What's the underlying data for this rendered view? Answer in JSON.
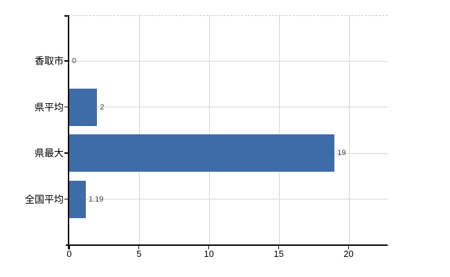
{
  "chart_data": {
    "type": "bar",
    "orientation": "horizontal",
    "title": "",
    "xlabel": "",
    "ylabel": "",
    "categories": [
      "香取市",
      "県平均",
      "県最大",
      "全国平均"
    ],
    "values": [
      0,
      2,
      19,
      1.19
    ],
    "value_labels": [
      "0",
      "2",
      "19",
      "1.19"
    ],
    "xlim": [
      0,
      22.8
    ],
    "xticks": [
      0,
      5,
      10,
      15,
      20
    ],
    "xtick_labels": [
      "0",
      "5",
      "10",
      "15",
      "20"
    ],
    "grid": true,
    "legend": "none",
    "colors": {
      "bar": "#3d6ca9",
      "vertical_gridline": "#d3d3d3",
      "horizontal_gridline": "#d3d8d0",
      "top_border_dashed": "#c4c9c4",
      "axis": "#000000",
      "value_label_text": "#3c3c3c",
      "tick_label_text": "#000000",
      "background": "#ffffff"
    }
  }
}
